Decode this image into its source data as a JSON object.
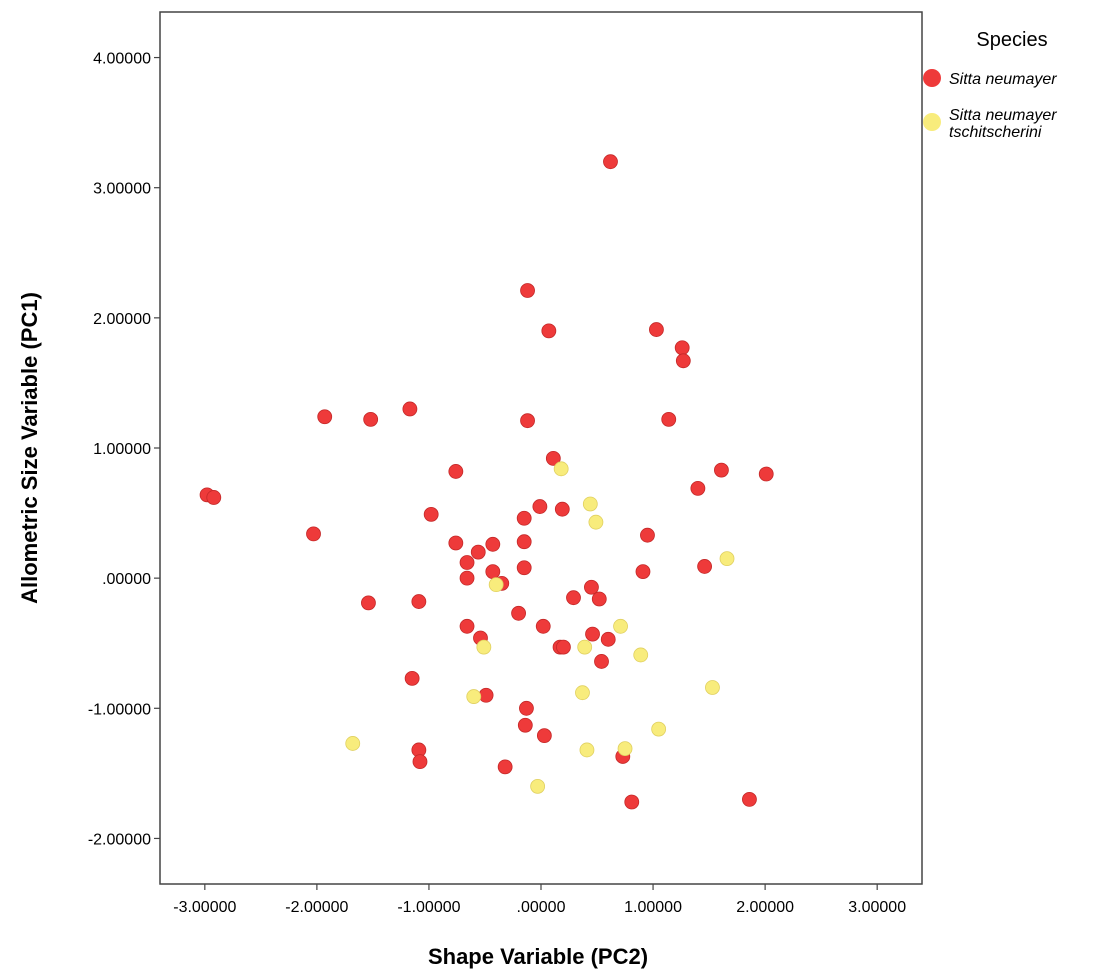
{
  "chart_data": {
    "type": "scatter",
    "xlabel": "Shape Variable (PC2)",
    "ylabel": "Allometric Size Variable (PC1)",
    "xlim": [
      -3.4,
      3.4
    ],
    "ylim": [
      -2.35,
      4.35
    ],
    "x_ticks": [
      -3,
      -2,
      -1,
      0,
      1,
      2,
      3
    ],
    "x_tick_labels": [
      "-3.00000",
      "-2.00000",
      "-1.00000",
      ".00000",
      "1.00000",
      "2.00000",
      "3.00000"
    ],
    "y_ticks": [
      -2,
      -1,
      0,
      1,
      2,
      3,
      4
    ],
    "y_tick_labels": [
      "-2.00000",
      "-1.00000",
      ".00000",
      "1.00000",
      "2.00000",
      "3.00000",
      "4.00000"
    ],
    "grid": false,
    "legend": {
      "title": "Species",
      "position": "right-top",
      "entries": [
        {
          "lines": [
            "Sitta neumayer"
          ],
          "color": "#ee3a3a"
        },
        {
          "lines": [
            "Sitta neumayer",
            "tschitscherini"
          ],
          "color": "#f8ec7c"
        }
      ]
    },
    "series": [
      {
        "name": "Sitta neumayer",
        "color": "#ee3a3a",
        "points": [
          [
            0.62,
            3.2
          ],
          [
            -0.12,
            2.21
          ],
          [
            0.07,
            1.9
          ],
          [
            1.03,
            1.91
          ],
          [
            1.26,
            1.77
          ],
          [
            1.27,
            1.67
          ],
          [
            -1.93,
            1.24
          ],
          [
            -1.52,
            1.22
          ],
          [
            -1.17,
            1.3
          ],
          [
            -0.12,
            1.21
          ],
          [
            1.14,
            1.22
          ],
          [
            -2.98,
            0.64
          ],
          [
            -2.92,
            0.62
          ],
          [
            -0.76,
            0.82
          ],
          [
            0.11,
            0.92
          ],
          [
            1.61,
            0.83
          ],
          [
            2.01,
            0.8
          ],
          [
            1.4,
            0.69
          ],
          [
            -0.98,
            0.49
          ],
          [
            -0.01,
            0.55
          ],
          [
            0.19,
            0.53
          ],
          [
            -0.15,
            0.46
          ],
          [
            -2.03,
            0.34
          ],
          [
            0.95,
            0.33
          ],
          [
            -0.76,
            0.27
          ],
          [
            -0.43,
            0.26
          ],
          [
            -0.15,
            0.28
          ],
          [
            -0.56,
            0.2
          ],
          [
            -0.66,
            0.12
          ],
          [
            -0.15,
            0.08
          ],
          [
            -0.43,
            0.05
          ],
          [
            1.46,
            0.09
          ],
          [
            0.91,
            0.05
          ],
          [
            -0.66,
            0.0
          ],
          [
            -0.35,
            -0.04
          ],
          [
            0.45,
            -0.07
          ],
          [
            0.29,
            -0.15
          ],
          [
            0.52,
            -0.16
          ],
          [
            -1.54,
            -0.19
          ],
          [
            -1.09,
            -0.18
          ],
          [
            -0.2,
            -0.27
          ],
          [
            -0.66,
            -0.37
          ],
          [
            0.02,
            -0.37
          ],
          [
            0.46,
            -0.43
          ],
          [
            -0.54,
            -0.46
          ],
          [
            0.6,
            -0.47
          ],
          [
            0.17,
            -0.53
          ],
          [
            0.2,
            -0.53
          ],
          [
            0.54,
            -0.64
          ],
          [
            -1.15,
            -0.77
          ],
          [
            -0.49,
            -0.9
          ],
          [
            -0.13,
            -1.0
          ],
          [
            -0.14,
            -1.13
          ],
          [
            0.03,
            -1.21
          ],
          [
            -1.09,
            -1.32
          ],
          [
            -1.08,
            -1.41
          ],
          [
            0.73,
            -1.37
          ],
          [
            -0.32,
            -1.45
          ],
          [
            0.81,
            -1.72
          ],
          [
            1.86,
            -1.7
          ]
        ]
      },
      {
        "name": "Sitta neumayer tschitscherini",
        "color": "#f8ec7c",
        "points": [
          [
            0.18,
            0.84
          ],
          [
            0.44,
            0.57
          ],
          [
            0.49,
            0.43
          ],
          [
            1.66,
            0.15
          ],
          [
            -0.4,
            -0.05
          ],
          [
            0.71,
            -0.37
          ],
          [
            -0.51,
            -0.53
          ],
          [
            0.39,
            -0.53
          ],
          [
            0.89,
            -0.59
          ],
          [
            -0.6,
            -0.91
          ],
          [
            0.37,
            -0.88
          ],
          [
            1.53,
            -0.84
          ],
          [
            1.05,
            -1.16
          ],
          [
            -1.68,
            -1.27
          ],
          [
            0.41,
            -1.32
          ],
          [
            0.75,
            -1.31
          ],
          [
            -0.03,
            -1.6
          ]
        ]
      }
    ]
  }
}
